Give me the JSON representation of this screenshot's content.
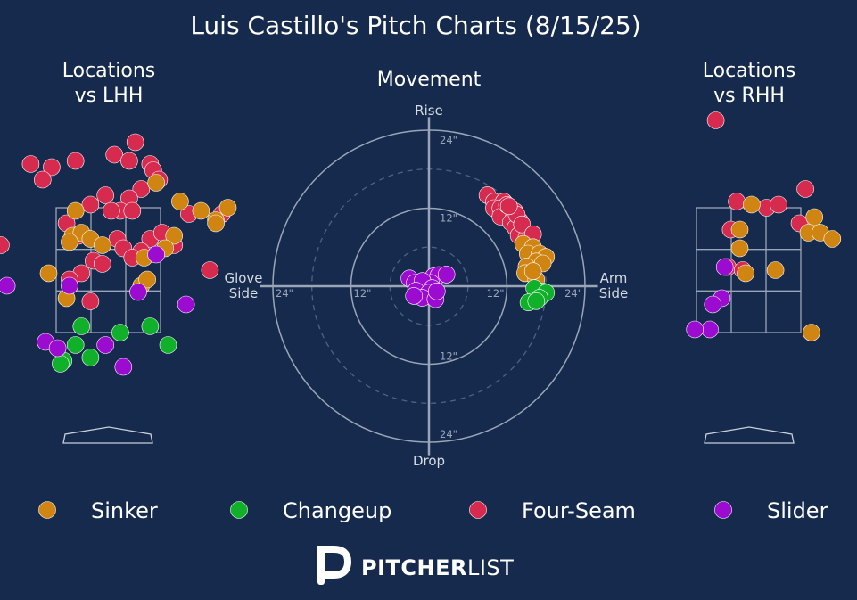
{
  "chart_data": {
    "type": "scatter",
    "title": "Luis Castillo's Pitch Charts (8/15/25)",
    "colors": {
      "background": "#152a4c",
      "Sinker": "#d08512",
      "Changeup": "#10b02a",
      "Four-Seam": "#d62b4f",
      "Slider": "#9b0bd0"
    },
    "legend": {
      "placement": "bottom",
      "entries": [
        "Sinker",
        "Changeup",
        "Four-Seam",
        "Slider"
      ]
    },
    "brand": {
      "bold": "PITCHER",
      "light": "LIST",
      "icon": "pitcherlist-logo-icon"
    },
    "movement": {
      "title": "Movement",
      "axis_labels": {
        "top": "Rise",
        "bottom": "Drop",
        "left": [
          "Glove",
          "Side"
        ],
        "right": [
          "Arm",
          "Side"
        ]
      },
      "ring_labels": [
        "12\"",
        "24\""
      ],
      "rings": [
        6,
        12,
        18,
        24
      ],
      "max_in": 26,
      "points": [
        {
          "pitch": "Four-Seam",
          "x": 9.0,
          "y": 14.0
        },
        {
          "pitch": "Four-Seam",
          "x": 10.0,
          "y": 13.0
        },
        {
          "pitch": "Four-Seam",
          "x": 11.5,
          "y": 13.0
        },
        {
          "pitch": "Four-Seam",
          "x": 10.0,
          "y": 12.0
        },
        {
          "pitch": "Four-Seam",
          "x": 11.0,
          "y": 12.0
        },
        {
          "pitch": "Four-Seam",
          "x": 12.5,
          "y": 12.0
        },
        {
          "pitch": "Four-Seam",
          "x": 13.2,
          "y": 11.5
        },
        {
          "pitch": "Four-Seam",
          "x": 12.0,
          "y": 11.0
        },
        {
          "pitch": "Four-Seam",
          "x": 11.0,
          "y": 10.7
        },
        {
          "pitch": "Four-Seam",
          "x": 13.0,
          "y": 10.5
        },
        {
          "pitch": "Four-Seam",
          "x": 12.6,
          "y": 9.8
        },
        {
          "pitch": "Four-Seam",
          "x": 14.0,
          "y": 10.0
        },
        {
          "pitch": "Four-Seam",
          "x": 13.3,
          "y": 9.0
        },
        {
          "pitch": "Four-Seam",
          "x": 14.5,
          "y": 8.5
        },
        {
          "pitch": "Four-Seam",
          "x": 13.8,
          "y": 7.8
        },
        {
          "pitch": "Four-Seam",
          "x": 15.0,
          "y": 7.5
        },
        {
          "pitch": "Four-Seam",
          "x": 12.0,
          "y": 12.5
        },
        {
          "pitch": "Four-Seam",
          "x": 13.5,
          "y": 11.0
        },
        {
          "pitch": "Four-Seam",
          "x": 14.3,
          "y": 9.5
        },
        {
          "pitch": "Four-Seam",
          "x": 12.3,
          "y": 12.3
        },
        {
          "pitch": "Four-Seam",
          "x": 16.0,
          "y": 8.0
        },
        {
          "pitch": "Sinker",
          "x": 14.5,
          "y": 6.5
        },
        {
          "pitch": "Sinker",
          "x": 16.0,
          "y": 6.0
        },
        {
          "pitch": "Sinker",
          "x": 15.2,
          "y": 5.0
        },
        {
          "pitch": "Sinker",
          "x": 17.0,
          "y": 5.0
        },
        {
          "pitch": "Sinker",
          "x": 18.0,
          "y": 4.5
        },
        {
          "pitch": "Sinker",
          "x": 16.5,
          "y": 3.8
        },
        {
          "pitch": "Sinker",
          "x": 15.0,
          "y": 3.0
        },
        {
          "pitch": "Sinker",
          "x": 17.5,
          "y": 3.5
        },
        {
          "pitch": "Sinker",
          "x": 14.8,
          "y": 2.0
        },
        {
          "pitch": "Sinker",
          "x": 16.5,
          "y": 1.0
        },
        {
          "pitch": "Sinker",
          "x": 16.0,
          "y": 2.3
        },
        {
          "pitch": "Changeup",
          "x": 17.5,
          "y": -0.8
        },
        {
          "pitch": "Changeup",
          "x": 16.2,
          "y": -0.3
        },
        {
          "pitch": "Changeup",
          "x": 18.0,
          "y": -1.0
        },
        {
          "pitch": "Changeup",
          "x": 17.0,
          "y": -1.8
        },
        {
          "pitch": "Changeup",
          "x": 15.3,
          "y": -2.5
        },
        {
          "pitch": "Changeup",
          "x": 16.5,
          "y": -2.3
        },
        {
          "pitch": "Slider",
          "x": -3.0,
          "y": 1.2
        },
        {
          "pitch": "Slider",
          "x": -2.2,
          "y": 0.5
        },
        {
          "pitch": "Slider",
          "x": 0.7,
          "y": 1.5
        },
        {
          "pitch": "Slider",
          "x": 1.5,
          "y": 1.7
        },
        {
          "pitch": "Slider",
          "x": 2.7,
          "y": 1.8
        },
        {
          "pitch": "Slider",
          "x": 0.3,
          "y": 0.5
        },
        {
          "pitch": "Slider",
          "x": -1.0,
          "y": 0.8
        },
        {
          "pitch": "Slider",
          "x": 0.5,
          "y": -0.3
        },
        {
          "pitch": "Slider",
          "x": -2.0,
          "y": -0.7
        },
        {
          "pitch": "Slider",
          "x": 0.0,
          "y": -1.0
        },
        {
          "pitch": "Slider",
          "x": -1.0,
          "y": -1.8
        },
        {
          "pitch": "Slider",
          "x": 1.0,
          "y": -2.0
        },
        {
          "pitch": "Slider",
          "x": -2.3,
          "y": -1.5
        },
        {
          "pitch": "Slider",
          "x": 1.2,
          "y": -0.8
        }
      ]
    },
    "locations_lhh": {
      "title": [
        "Locations",
        "vs LHH"
      ],
      "points": [
        {
          "pitch": "Four-Seam",
          "x": 0.45,
          "y": 4.55
        },
        {
          "pitch": "Four-Seam",
          "x": -1.3,
          "y": 4.2
        },
        {
          "pitch": "Four-Seam",
          "x": -0.95,
          "y": 4.15
        },
        {
          "pitch": "Four-Seam",
          "x": -0.55,
          "y": 4.25
        },
        {
          "pitch": "Four-Seam",
          "x": 0.1,
          "y": 4.35
        },
        {
          "pitch": "Four-Seam",
          "x": 0.35,
          "y": 4.25
        },
        {
          "pitch": "Four-Seam",
          "x": 0.7,
          "y": 4.2
        },
        {
          "pitch": "Four-Seam",
          "x": 0.75,
          "y": 4.1
        },
        {
          "pitch": "Four-Seam",
          "x": -1.1,
          "y": 3.95
        },
        {
          "pitch": "Four-Seam",
          "x": 0.55,
          "y": 3.8
        },
        {
          "pitch": "Four-Seam",
          "x": 0.85,
          "y": 3.95
        },
        {
          "pitch": "Four-Seam",
          "x": -0.05,
          "y": 3.7
        },
        {
          "pitch": "Four-Seam",
          "x": -0.3,
          "y": 3.55
        },
        {
          "pitch": "Four-Seam",
          "x": 0.35,
          "y": 3.65
        },
        {
          "pitch": "Four-Seam",
          "x": 0.2,
          "y": 3.45
        },
        {
          "pitch": "Four-Seam",
          "x": 0.4,
          "y": 3.45
        },
        {
          "pitch": "Four-Seam",
          "x": -0.7,
          "y": 3.25
        },
        {
          "pitch": "Four-Seam",
          "x": -0.5,
          "y": 3.05
        },
        {
          "pitch": "Four-Seam",
          "x": 0.15,
          "y": 3.0
        },
        {
          "pitch": "Four-Seam",
          "x": 0.7,
          "y": 3.0
        },
        {
          "pitch": "Four-Seam",
          "x": -1.8,
          "y": 2.9
        },
        {
          "pitch": "Four-Seam",
          "x": 0.25,
          "y": 2.85
        },
        {
          "pitch": "Four-Seam",
          "x": 0.55,
          "y": 2.8
        },
        {
          "pitch": "Four-Seam",
          "x": 1.1,
          "y": 2.9
        },
        {
          "pitch": "Four-Seam",
          "x": -0.25,
          "y": 2.65
        },
        {
          "pitch": "Four-Seam",
          "x": 0.4,
          "y": 2.7
        },
        {
          "pitch": "Four-Seam",
          "x": -0.45,
          "y": 2.45
        },
        {
          "pitch": "Four-Seam",
          "x": -0.65,
          "y": 2.35
        },
        {
          "pitch": "Four-Seam",
          "x": 1.35,
          "y": 3.4
        },
        {
          "pitch": "Four-Seam",
          "x": 1.7,
          "y": 2.5
        },
        {
          "pitch": "Four-Seam",
          "x": 1.9,
          "y": 3.4
        },
        {
          "pitch": "Four-Seam",
          "x": 0.05,
          "y": 3.45
        },
        {
          "pitch": "Four-Seam",
          "x": 0.9,
          "y": 3.1
        },
        {
          "pitch": "Four-Seam",
          "x": -0.1,
          "y": 2.6
        },
        {
          "pitch": "Four-Seam",
          "x": -0.3,
          "y": 2.0
        },
        {
          "pitch": "Sinker",
          "x": 0.8,
          "y": 3.9
        },
        {
          "pitch": "Sinker",
          "x": 1.2,
          "y": 3.6
        },
        {
          "pitch": "Sinker",
          "x": -0.55,
          "y": 3.45
        },
        {
          "pitch": "Sinker",
          "x": 1.55,
          "y": 3.45
        },
        {
          "pitch": "Sinker",
          "x": 1.8,
          "y": 3.3
        },
        {
          "pitch": "Sinker",
          "x": 2.0,
          "y": 3.5
        },
        {
          "pitch": "Sinker",
          "x": -0.6,
          "y": 3.05
        },
        {
          "pitch": "Sinker",
          "x": -0.45,
          "y": 3.1
        },
        {
          "pitch": "Sinker",
          "x": -0.3,
          "y": 3.0
        },
        {
          "pitch": "Sinker",
          "x": -0.65,
          "y": 2.95
        },
        {
          "pitch": "Sinker",
          "x": 1.1,
          "y": 3.05
        },
        {
          "pitch": "Sinker",
          "x": 0.95,
          "y": 2.85
        },
        {
          "pitch": "Sinker",
          "x": -0.1,
          "y": 2.9
        },
        {
          "pitch": "Sinker",
          "x": 0.6,
          "y": 2.7
        },
        {
          "pitch": "Sinker",
          "x": -1.0,
          "y": 2.45
        },
        {
          "pitch": "Sinker",
          "x": 0.55,
          "y": 2.25
        },
        {
          "pitch": "Sinker",
          "x": 0.65,
          "y": 2.35
        },
        {
          "pitch": "Sinker",
          "x": -0.7,
          "y": 2.05
        },
        {
          "pitch": "Sinker",
          "x": 1.8,
          "y": 3.25
        },
        {
          "pitch": "Changeup",
          "x": -0.45,
          "y": 1.6
        },
        {
          "pitch": "Changeup",
          "x": 0.2,
          "y": 1.5
        },
        {
          "pitch": "Changeup",
          "x": 0.7,
          "y": 1.6
        },
        {
          "pitch": "Changeup",
          "x": -0.55,
          "y": 1.3
        },
        {
          "pitch": "Changeup",
          "x": 1.0,
          "y": 1.3
        },
        {
          "pitch": "Changeup",
          "x": -0.75,
          "y": 1.05
        },
        {
          "pitch": "Changeup",
          "x": -0.3,
          "y": 1.1
        },
        {
          "pitch": "Changeup",
          "x": -0.8,
          "y": 1.0
        },
        {
          "pitch": "Slider",
          "x": -1.7,
          "y": 2.25
        },
        {
          "pitch": "Slider",
          "x": -0.65,
          "y": 2.25
        },
        {
          "pitch": "Slider",
          "x": 0.5,
          "y": 2.15
        },
        {
          "pitch": "Slider",
          "x": 0.8,
          "y": 2.75
        },
        {
          "pitch": "Slider",
          "x": 1.3,
          "y": 1.95
        },
        {
          "pitch": "Slider",
          "x": -1.05,
          "y": 1.35
        },
        {
          "pitch": "Slider",
          "x": -0.85,
          "y": 1.25
        },
        {
          "pitch": "Slider",
          "x": -0.05,
          "y": 1.3
        },
        {
          "pitch": "Slider",
          "x": 0.25,
          "y": 0.95
        }
      ]
    },
    "locations_rhh": {
      "title": [
        "Locations",
        "vs RHH"
      ],
      "points": [
        {
          "pitch": "Four-Seam",
          "x": -0.55,
          "y": 4.9
        },
        {
          "pitch": "Four-Seam",
          "x": 0.95,
          "y": 3.8
        },
        {
          "pitch": "Four-Seam",
          "x": -0.2,
          "y": 3.6
        },
        {
          "pitch": "Four-Seam",
          "x": 0.3,
          "y": 3.5
        },
        {
          "pitch": "Four-Seam",
          "x": 0.5,
          "y": 3.55
        },
        {
          "pitch": "Four-Seam",
          "x": 0.85,
          "y": 3.25
        },
        {
          "pitch": "Four-Seam",
          "x": -0.3,
          "y": 3.15
        },
        {
          "pitch": "Four-Seam",
          "x": -0.35,
          "y": 2.55
        },
        {
          "pitch": "Four-Seam",
          "x": -0.1,
          "y": 2.5
        },
        {
          "pitch": "Sinker",
          "x": 0.05,
          "y": 3.55
        },
        {
          "pitch": "Sinker",
          "x": 1.1,
          "y": 3.35
        },
        {
          "pitch": "Sinker",
          "x": -0.15,
          "y": 3.15
        },
        {
          "pitch": "Sinker",
          "x": 1.0,
          "y": 3.1
        },
        {
          "pitch": "Sinker",
          "x": 1.2,
          "y": 3.1
        },
        {
          "pitch": "Sinker",
          "x": 1.4,
          "y": 3.0
        },
        {
          "pitch": "Sinker",
          "x": -0.15,
          "y": 2.85
        },
        {
          "pitch": "Sinker",
          "x": -0.05,
          "y": 2.45
        },
        {
          "pitch": "Sinker",
          "x": 0.45,
          "y": 2.5
        },
        {
          "pitch": "Sinker",
          "x": 1.05,
          "y": 1.5
        },
        {
          "pitch": "Slider",
          "x": -0.4,
          "y": 2.55
        },
        {
          "pitch": "Slider",
          "x": -0.45,
          "y": 2.05
        },
        {
          "pitch": "Slider",
          "x": -0.6,
          "y": 1.95
        },
        {
          "pitch": "Slider",
          "x": -0.65,
          "y": 1.55
        },
        {
          "pitch": "Slider",
          "x": -0.9,
          "y": 1.55
        }
      ]
    }
  }
}
